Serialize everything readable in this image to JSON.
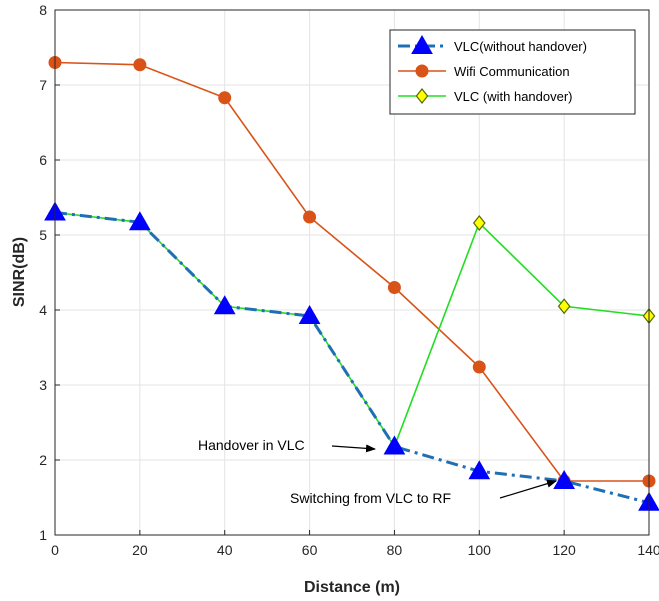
{
  "chart_data": {
    "type": "line",
    "xlabel": "Distance (m)",
    "ylabel": "SINR(dB)",
    "xlim": [
      0,
      140
    ],
    "ylim": [
      1,
      8
    ],
    "xticks": [
      "0",
      "20",
      "40",
      "60",
      "80",
      "100",
      "120",
      "140"
    ],
    "yticks": [
      "1",
      "2",
      "3",
      "4",
      "5",
      "6",
      "7",
      "8"
    ],
    "grid": true,
    "legend_position": "top-right",
    "x": [
      0,
      20,
      40,
      60,
      80,
      100,
      120,
      140
    ],
    "series": [
      {
        "name": "VLC(without handover)",
        "color": "#1f6fb4",
        "marker": "triangle",
        "marker_color": "#0000ff",
        "line_style": "dash-dot",
        "values": [
          5.3,
          5.17,
          4.05,
          3.92,
          2.18,
          1.85,
          1.72,
          1.43
        ]
      },
      {
        "name": "Wifi Communication",
        "color": "#d95319",
        "marker": "circle",
        "marker_color": "#d95319",
        "line_style": "solid",
        "values": [
          7.3,
          7.27,
          6.83,
          5.24,
          4.3,
          3.24,
          1.72,
          1.72
        ]
      },
      {
        "name": "VLC (with handover)",
        "color": "#22dd22",
        "marker": "diamond",
        "marker_color": "#ffff00",
        "line_style": "solid",
        "values": [
          5.3,
          5.17,
          4.05,
          3.92,
          2.18,
          5.16,
          4.05,
          3.92
        ]
      }
    ],
    "annotations": [
      {
        "text": "Handover in VLC",
        "arrow_to": [
          80,
          2.18
        ]
      },
      {
        "text": "Switching from VLC to RF",
        "arrow_to": [
          120,
          1.72
        ]
      }
    ]
  }
}
